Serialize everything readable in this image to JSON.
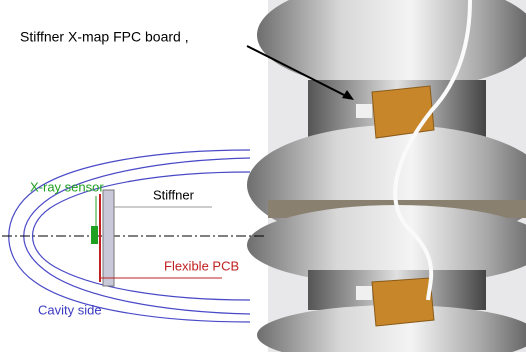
{
  "title": "Stiffner X-map FPC board ,",
  "diagram": {
    "sensor_label": "X-ray sensor",
    "stiffner_label": "Stiffner",
    "pcb_label": "Flexible PCB",
    "cavity_label": "Cavity side"
  }
}
